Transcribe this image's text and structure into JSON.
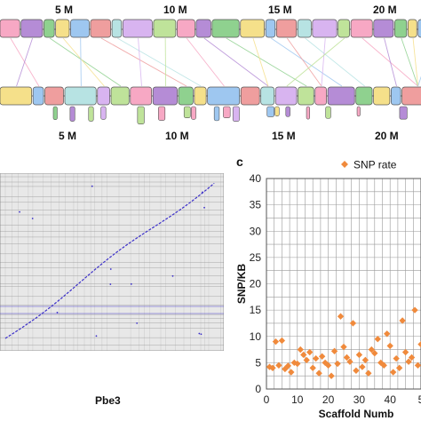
{
  "panel_a": {
    "top_ticks": [
      "5 M",
      "10 M",
      "15 M",
      "20 M"
    ],
    "bottom_ticks": [
      "5 M",
      "10 M",
      "15 M",
      "20 M"
    ],
    "block_colors": [
      "#f7a8c4",
      "#b58cd6",
      "#8fd18f",
      "#f5e08a",
      "#9ec7f0",
      "#ef9e9e",
      "#b7e3e3",
      "#d8b4f0",
      "#bfe39a"
    ]
  },
  "panel_b": {
    "xlabel": "Pbe3",
    "dot_color": "#3b2fc9"
  },
  "panel_c": {
    "letter": "c",
    "chart_data": {
      "type": "scatter",
      "xlabel": "Scaffold Numb",
      "ylabel": "SNP/KB",
      "legend": "SNP rate",
      "legend_position": "top-right",
      "grid": true,
      "xlim": [
        0,
        50
      ],
      "ylim": [
        0,
        40
      ],
      "xticks": [
        "0",
        "10",
        "20",
        "30",
        "40",
        "5"
      ],
      "yticks": [
        "0",
        "5",
        "10",
        "15",
        "20",
        "25",
        "30",
        "35",
        "40"
      ],
      "color": "#f08a3c",
      "points": [
        [
          1,
          4.2
        ],
        [
          2,
          4.0
        ],
        [
          3,
          9.0
        ],
        [
          4,
          4.5
        ],
        [
          5,
          9.2
        ],
        [
          6,
          3.8
        ],
        [
          7,
          4.4
        ],
        [
          8,
          3.2
        ],
        [
          9,
          5.0
        ],
        [
          10,
          4.8
        ],
        [
          11,
          7.5
        ],
        [
          12,
          6.5
        ],
        [
          13,
          5.5
        ],
        [
          14,
          7.0
        ],
        [
          15,
          4.0
        ],
        [
          16,
          5.8
        ],
        [
          17,
          3.0
        ],
        [
          18,
          6.2
        ],
        [
          19,
          5.0
        ],
        [
          20,
          4.5
        ],
        [
          21,
          2.5
        ],
        [
          22,
          7.2
        ],
        [
          23,
          4.8
        ],
        [
          24,
          13.8
        ],
        [
          25,
          8.0
        ],
        [
          26,
          6.0
        ],
        [
          27,
          5.2
        ],
        [
          28,
          12.5
        ],
        [
          29,
          3.5
        ],
        [
          30,
          6.5
        ],
        [
          31,
          4.2
        ],
        [
          32,
          5.5
        ],
        [
          33,
          3.0
        ],
        [
          34,
          7.5
        ],
        [
          35,
          6.8
        ],
        [
          36,
          9.5
        ],
        [
          37,
          5.0
        ],
        [
          38,
          4.5
        ],
        [
          39,
          10.5
        ],
        [
          40,
          8.2
        ],
        [
          41,
          3.2
        ],
        [
          42,
          5.8
        ],
        [
          43,
          4.0
        ],
        [
          44,
          13.0
        ],
        [
          45,
          7.0
        ],
        [
          46,
          5.2
        ],
        [
          47,
          6.0
        ],
        [
          48,
          15.0
        ],
        [
          49,
          4.5
        ],
        [
          50,
          8.5
        ]
      ]
    }
  }
}
